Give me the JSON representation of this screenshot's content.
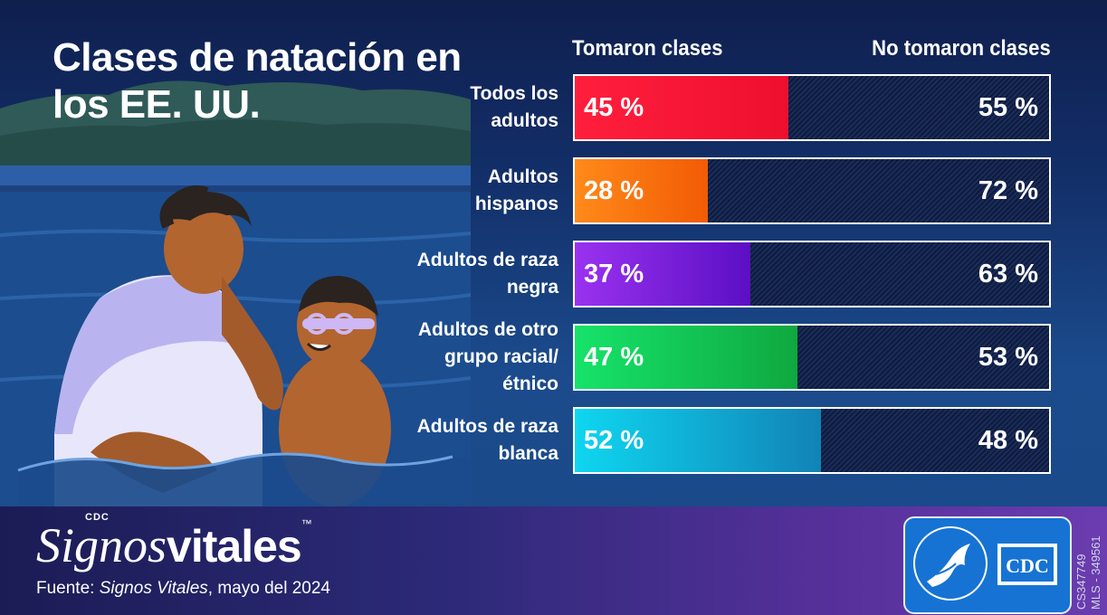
{
  "title": "Clases de natación en los EE. UU.",
  "column_headers": {
    "took": "Tomaron clases",
    "not_took": "No tomaron clases"
  },
  "chart_data": {
    "type": "bar",
    "orientation": "horizontal",
    "stacked": true,
    "title": "Clases de natación en los EE. UU.",
    "categories": [
      "Todos los adultos",
      "Adultos hispanos",
      "Adultos de raza negra",
      "Adultos de otro grupo racial/étnico",
      "Adultos de raza blanca"
    ],
    "series": [
      {
        "name": "Tomaron clases",
        "values": [
          45,
          28,
          37,
          47,
          52
        ]
      },
      {
        "name": "No tomaron clases",
        "values": [
          55,
          72,
          63,
          53,
          48
        ]
      }
    ],
    "value_labels_took": [
      "45 %",
      "28 %",
      "37 %",
      "47 %",
      "52 %"
    ],
    "value_labels_not": [
      "55 %",
      "72 %",
      "63 %",
      "53 %",
      "48 %"
    ],
    "fill_colors": [
      [
        "#ff1f3d",
        "#ee0f2e"
      ],
      [
        "#ff8a1a",
        "#f25b05"
      ],
      [
        "#9a32f0",
        "#5b0fc4"
      ],
      [
        "#16e36a",
        "#0fa83f"
      ],
      [
        "#0fd6f0",
        "#1183b6"
      ]
    ],
    "xlim": [
      0,
      100
    ]
  },
  "footer": {
    "brand_small": "CDC",
    "brand_italic": "Signos",
    "brand_bold": "vitales",
    "brand_tm": "™",
    "source_prefix": "Fuente: ",
    "source_italic": "Signos Vitales",
    "source_suffix": ", mayo del 2024",
    "logo_text": "CDC",
    "code1": "CS347749",
    "code2": "MLS - 349561"
  },
  "colors": {
    "background_top": "#0f1f4e",
    "footer": "#2c2a78",
    "logo_bg": "#1673d4"
  }
}
